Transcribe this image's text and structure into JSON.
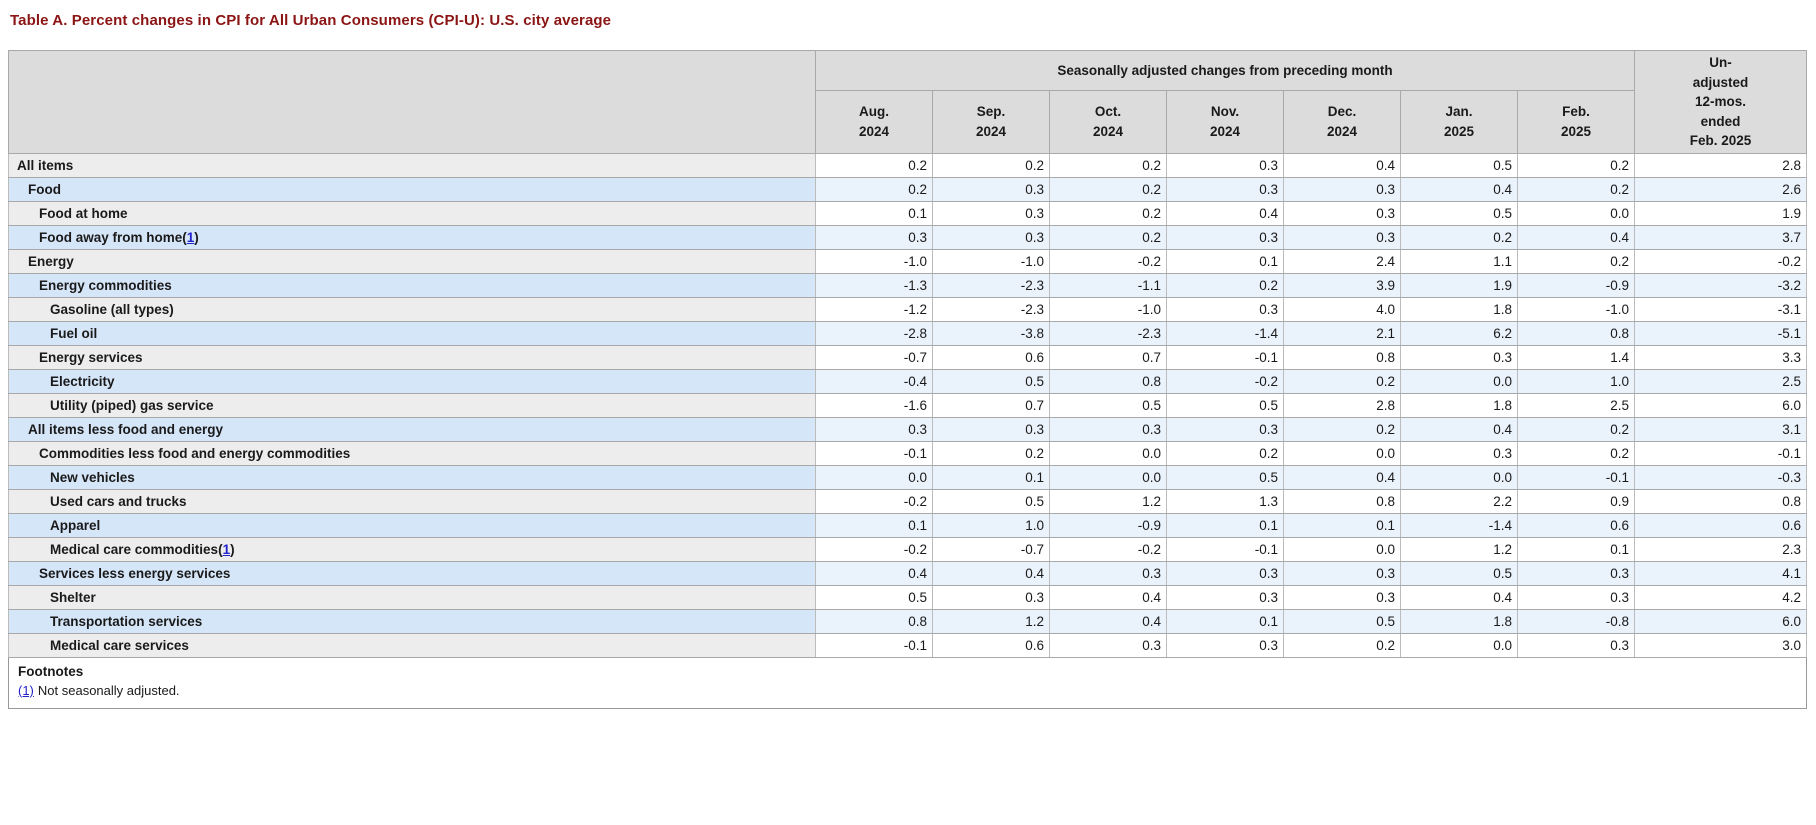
{
  "page_title": "Table A. Percent changes in CPI for All Urban Consumers (CPI-U): U.S. city average",
  "colors": {
    "title": "#8a1514",
    "link": "#2323cb",
    "header-bg": "#dcdcdc",
    "row-gray-label": "#ededed",
    "row-gray-value": "#ffffff",
    "row-blue-label": "#d6e6f9",
    "row-blue-value": "#eaf2fc"
  },
  "table": {
    "group_header": "Seasonally adjusted changes from preceding month",
    "month_columns": [
      "Aug.\n2024",
      "Sep.\n2024",
      "Oct.\n2024",
      "Nov.\n2024",
      "Dec.\n2024",
      "Jan.\n2025",
      "Feb.\n2025"
    ],
    "last_column_header": "Un-\nadjusted\n12-mos.\nended\nFeb. 2025",
    "rows": [
      {
        "label": "All items",
        "indent": 0,
        "footnote_ref": null,
        "values": [
          "0.2",
          "0.2",
          "0.2",
          "0.3",
          "0.4",
          "0.5",
          "0.2",
          "2.8"
        ]
      },
      {
        "label": "Food",
        "indent": 1,
        "footnote_ref": null,
        "values": [
          "0.2",
          "0.3",
          "0.2",
          "0.3",
          "0.3",
          "0.4",
          "0.2",
          "2.6"
        ]
      },
      {
        "label": "Food at home",
        "indent": 2,
        "footnote_ref": null,
        "values": [
          "0.1",
          "0.3",
          "0.2",
          "0.4",
          "0.3",
          "0.5",
          "0.0",
          "1.9"
        ]
      },
      {
        "label": "Food away from home",
        "indent": 2,
        "footnote_ref": "1",
        "values": [
          "0.3",
          "0.3",
          "0.2",
          "0.3",
          "0.3",
          "0.2",
          "0.4",
          "3.7"
        ]
      },
      {
        "label": "Energy",
        "indent": 1,
        "footnote_ref": null,
        "values": [
          "-1.0",
          "-1.0",
          "-0.2",
          "0.1",
          "2.4",
          "1.1",
          "0.2",
          "-0.2"
        ]
      },
      {
        "label": "Energy commodities",
        "indent": 2,
        "footnote_ref": null,
        "values": [
          "-1.3",
          "-2.3",
          "-1.1",
          "0.2",
          "3.9",
          "1.9",
          "-0.9",
          "-3.2"
        ]
      },
      {
        "label": "Gasoline (all types)",
        "indent": 3,
        "footnote_ref": null,
        "values": [
          "-1.2",
          "-2.3",
          "-1.0",
          "0.3",
          "4.0",
          "1.8",
          "-1.0",
          "-3.1"
        ]
      },
      {
        "label": "Fuel oil",
        "indent": 3,
        "footnote_ref": null,
        "values": [
          "-2.8",
          "-3.8",
          "-2.3",
          "-1.4",
          "2.1",
          "6.2",
          "0.8",
          "-5.1"
        ]
      },
      {
        "label": "Energy services",
        "indent": 2,
        "footnote_ref": null,
        "values": [
          "-0.7",
          "0.6",
          "0.7",
          "-0.1",
          "0.8",
          "0.3",
          "1.4",
          "3.3"
        ]
      },
      {
        "label": "Electricity",
        "indent": 3,
        "footnote_ref": null,
        "values": [
          "-0.4",
          "0.5",
          "0.8",
          "-0.2",
          "0.2",
          "0.0",
          "1.0",
          "2.5"
        ]
      },
      {
        "label": "Utility (piped) gas service",
        "indent": 3,
        "footnote_ref": null,
        "values": [
          "-1.6",
          "0.7",
          "0.5",
          "0.5",
          "2.8",
          "1.8",
          "2.5",
          "6.0"
        ]
      },
      {
        "label": "All items less food and energy",
        "indent": 1,
        "footnote_ref": null,
        "values": [
          "0.3",
          "0.3",
          "0.3",
          "0.3",
          "0.2",
          "0.4",
          "0.2",
          "3.1"
        ]
      },
      {
        "label": "Commodities less food and energy commodities",
        "indent": 2,
        "footnote_ref": null,
        "values": [
          "-0.1",
          "0.2",
          "0.0",
          "0.2",
          "0.0",
          "0.3",
          "0.2",
          "-0.1"
        ]
      },
      {
        "label": "New vehicles",
        "indent": 3,
        "footnote_ref": null,
        "values": [
          "0.0",
          "0.1",
          "0.0",
          "0.5",
          "0.4",
          "0.0",
          "-0.1",
          "-0.3"
        ]
      },
      {
        "label": "Used cars and trucks",
        "indent": 3,
        "footnote_ref": null,
        "values": [
          "-0.2",
          "0.5",
          "1.2",
          "1.3",
          "0.8",
          "2.2",
          "0.9",
          "0.8"
        ]
      },
      {
        "label": "Apparel",
        "indent": 3,
        "footnote_ref": null,
        "values": [
          "0.1",
          "1.0",
          "-0.9",
          "0.1",
          "0.1",
          "-1.4",
          "0.6",
          "0.6"
        ]
      },
      {
        "label": "Medical care commodities",
        "indent": 3,
        "footnote_ref": "1",
        "values": [
          "-0.2",
          "-0.7",
          "-0.2",
          "-0.1",
          "0.0",
          "1.2",
          "0.1",
          "2.3"
        ]
      },
      {
        "label": "Services less energy services",
        "indent": 2,
        "footnote_ref": null,
        "values": [
          "0.4",
          "0.4",
          "0.3",
          "0.3",
          "0.3",
          "0.5",
          "0.3",
          "4.1"
        ]
      },
      {
        "label": "Shelter",
        "indent": 3,
        "footnote_ref": null,
        "values": [
          "0.5",
          "0.3",
          "0.4",
          "0.3",
          "0.3",
          "0.4",
          "0.3",
          "4.2"
        ]
      },
      {
        "label": "Transportation services",
        "indent": 3,
        "footnote_ref": null,
        "values": [
          "0.8",
          "1.2",
          "0.4",
          "0.1",
          "0.5",
          "1.8",
          "-0.8",
          "6.0"
        ]
      },
      {
        "label": "Medical care services",
        "indent": 3,
        "footnote_ref": null,
        "values": [
          "-0.1",
          "0.6",
          "0.3",
          "0.3",
          "0.2",
          "0.0",
          "0.3",
          "3.0"
        ]
      }
    ]
  },
  "footnotes": {
    "heading": "Footnotes",
    "items": [
      {
        "ref": "(1)",
        "text": "Not seasonally adjusted."
      }
    ]
  }
}
